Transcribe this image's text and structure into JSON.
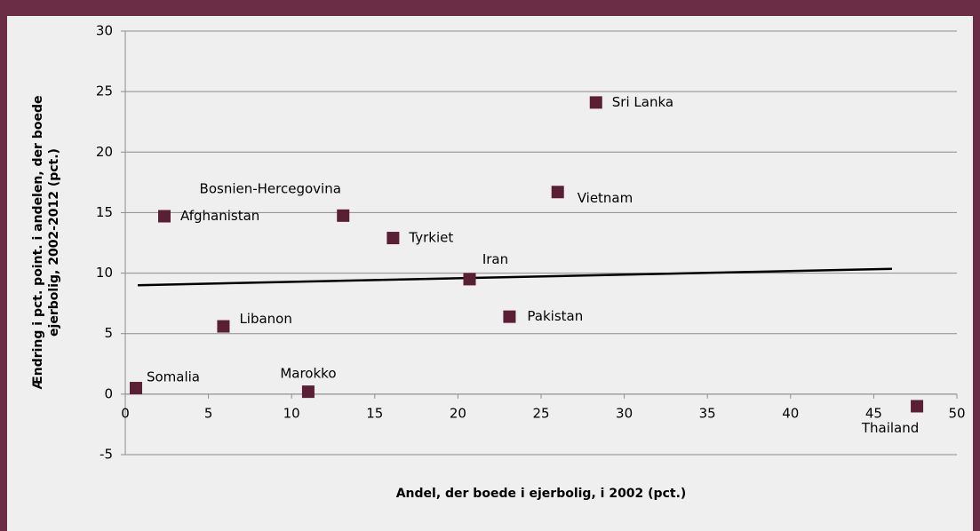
{
  "chart_data": {
    "type": "scatter",
    "x_label": "Andel, der boede i ejerbolig, i 2002 (pct.)",
    "y_label": [
      "Ændring i pct. point. i andelen, der boede",
      "ejerbolig, 2002-2012 (pct.)"
    ],
    "categories": [
      "Somalia",
      "Afghanistan",
      "Libanon",
      "Marokko",
      "Bosnien-Hercegovina",
      "Tyrkiet",
      "Iran",
      "Pakistan",
      "Vietnam",
      "Sri Lanka",
      "Thailand"
    ],
    "x": [
      0.64,
      2.35,
      5.9,
      11.0,
      13.1,
      16.1,
      20.7,
      23.1,
      26.0,
      28.3,
      47.6
    ],
    "values": [
      0.5,
      14.7,
      5.6,
      0.2,
      14.75,
      12.9,
      9.5,
      6.4,
      16.7,
      24.1,
      -1.0
    ],
    "color": "#5a1f35",
    "trendline": {
      "x": [
        0.75,
        46.1
      ],
      "y": [
        9.0,
        10.35
      ],
      "color": "#000000"
    },
    "xlim": [
      0,
      50
    ],
    "xticks": [
      0,
      5,
      10,
      15,
      20,
      25,
      30,
      35,
      40,
      45,
      50
    ],
    "ylim": [
      -5,
      30
    ],
    "yticks": [
      -5,
      0,
      5,
      10,
      15,
      20,
      25,
      30
    ],
    "grid": true
  }
}
